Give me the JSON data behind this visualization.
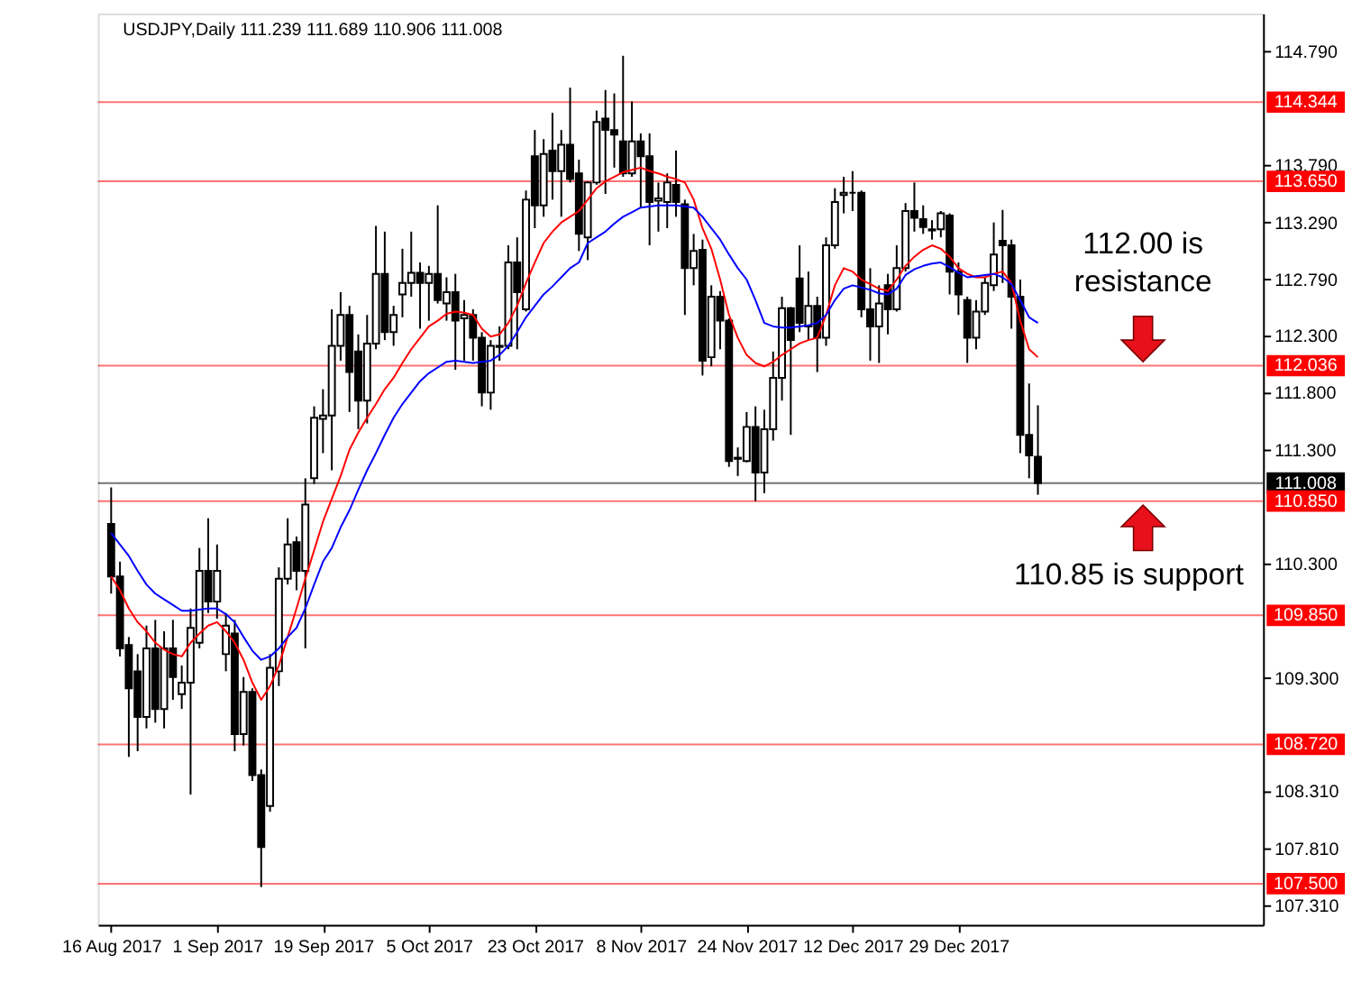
{
  "chart_data": {
    "type": "candlestick",
    "title": "USDJPY,Daily  111.239 111.689 110.906 111.008",
    "categories": [
      "16 Aug 2017",
      null,
      null,
      null,
      null,
      null,
      null,
      null,
      null,
      null,
      null,
      null,
      "1 Sep 2017",
      null,
      null,
      null,
      null,
      null,
      null,
      null,
      null,
      null,
      null,
      null,
      "19 Sep 2017",
      null,
      null,
      null,
      null,
      null,
      null,
      null,
      null,
      null,
      null,
      null,
      "5 Oct 2017",
      null,
      null,
      null,
      null,
      null,
      null,
      null,
      null,
      null,
      null,
      null,
      "23 Oct 2017",
      null,
      null,
      null,
      null,
      null,
      null,
      null,
      null,
      null,
      null,
      null,
      "8 Nov 2017",
      null,
      null,
      null,
      null,
      null,
      null,
      null,
      null,
      null,
      null,
      null,
      "24 Nov 2017",
      null,
      null,
      null,
      null,
      null,
      null,
      null,
      null,
      null,
      null,
      null,
      "12 Dec 2017",
      null,
      null,
      null,
      null,
      null,
      null,
      null,
      null,
      null,
      null,
      null,
      "29 Dec 2017",
      null,
      null,
      null,
      null,
      null,
      null,
      null,
      null,
      null
    ],
    "ohlc": [
      [
        110.65,
        110.97,
        110.04,
        110.19
      ],
      [
        110.19,
        110.32,
        109.49,
        109.56
      ],
      [
        109.59,
        109.66,
        108.61,
        109.21
      ],
      [
        109.36,
        109.51,
        108.66,
        108.96
      ],
      [
        108.96,
        109.76,
        108.86,
        109.56
      ],
      [
        109.56,
        109.81,
        108.91,
        109.03
      ],
      [
        109.03,
        109.71,
        108.86,
        109.56
      ],
      [
        109.56,
        109.81,
        109.11,
        109.31
      ],
      [
        109.16,
        109.41,
        109.03,
        109.26
      ],
      [
        109.26,
        109.91,
        108.28,
        109.74
      ],
      [
        109.61,
        110.44,
        109.56,
        110.24
      ],
      [
        110.24,
        110.7,
        109.87,
        109.97
      ],
      [
        109.97,
        110.47,
        109.82,
        110.24
      ],
      [
        109.51,
        109.87,
        109.36,
        109.76
      ],
      [
        109.69,
        109.81,
        108.66,
        108.81
      ],
      [
        108.81,
        109.31,
        108.71,
        109.18
      ],
      [
        109.18,
        109.21,
        108.4,
        108.45
      ],
      [
        108.45,
        108.5,
        107.47,
        107.82
      ],
      [
        108.18,
        109.51,
        108.13,
        109.39
      ],
      [
        109.36,
        110.27,
        109.23,
        110.17
      ],
      [
        110.17,
        110.7,
        110.12,
        110.47
      ],
      [
        110.49,
        110.54,
        110.07,
        110.24
      ],
      [
        110.24,
        111.05,
        109.56,
        110.82
      ],
      [
        111.05,
        111.68,
        111.0,
        111.58
      ],
      [
        111.57,
        111.83,
        111.27,
        111.6
      ],
      [
        111.6,
        112.53,
        111.12,
        112.21
      ],
      [
        112.21,
        112.68,
        112.08,
        112.48
      ],
      [
        112.48,
        112.56,
        111.63,
        111.98
      ],
      [
        112.16,
        112.31,
        111.48,
        111.73
      ],
      [
        111.73,
        112.48,
        111.53,
        112.23
      ],
      [
        112.23,
        113.26,
        112.18,
        112.84
      ],
      [
        112.84,
        113.21,
        112.26,
        112.33
      ],
      [
        112.33,
        112.56,
        112.21,
        112.48
      ],
      [
        112.66,
        113.06,
        112.46,
        112.76
      ],
      [
        112.76,
        113.21,
        112.64,
        112.85
      ],
      [
        112.85,
        112.94,
        112.36,
        112.76
      ],
      [
        112.76,
        112.91,
        112.43,
        112.84
      ],
      [
        112.84,
        113.44,
        112.58,
        112.61
      ],
      [
        112.58,
        112.81,
        112.43,
        112.68
      ],
      [
        112.68,
        112.84,
        112.0,
        112.43
      ],
      [
        112.45,
        112.61,
        112.08,
        112.48
      ],
      [
        112.48,
        112.53,
        112.08,
        112.28
      ],
      [
        112.28,
        112.33,
        111.68,
        111.8
      ],
      [
        111.8,
        112.26,
        111.65,
        112.21
      ],
      [
        112.2,
        112.38,
        112.08,
        112.21
      ],
      [
        112.21,
        113.09,
        112.18,
        112.94
      ],
      [
        112.94,
        113.16,
        112.18,
        112.68
      ],
      [
        112.53,
        113.57,
        112.51,
        113.49
      ],
      [
        113.87,
        114.1,
        113.24,
        113.44
      ],
      [
        113.44,
        114.02,
        113.34,
        113.89
      ],
      [
        113.92,
        114.25,
        113.49,
        113.74
      ],
      [
        113.74,
        114.1,
        113.34,
        113.97
      ],
      [
        113.97,
        114.47,
        113.64,
        113.67
      ],
      [
        113.72,
        113.84,
        113.04,
        113.19
      ],
      [
        113.16,
        113.65,
        112.96,
        113.64
      ],
      [
        113.64,
        114.27,
        113.62,
        114.17
      ],
      [
        114.2,
        114.45,
        113.54,
        114.1
      ],
      [
        114.1,
        114.42,
        113.77,
        114.06
      ],
      [
        114.0,
        114.75,
        113.69,
        113.72
      ],
      [
        113.72,
        114.35,
        113.69,
        114.0
      ],
      [
        114.0,
        114.07,
        113.42,
        113.87
      ],
      [
        113.87,
        114.07,
        113.09,
        113.47
      ],
      [
        113.48,
        113.64,
        113.21,
        113.5
      ],
      [
        113.47,
        113.72,
        113.24,
        113.64
      ],
      [
        113.62,
        113.92,
        113.34,
        113.47
      ],
      [
        113.45,
        113.49,
        112.48,
        112.89
      ],
      [
        112.89,
        113.19,
        112.74,
        113.04
      ],
      [
        113.05,
        113.14,
        111.95,
        112.08
      ],
      [
        112.11,
        112.74,
        112.03,
        112.64
      ],
      [
        112.64,
        112.69,
        112.18,
        112.43
      ],
      [
        112.43,
        112.45,
        111.15,
        111.2
      ],
      [
        111.22,
        111.32,
        111.07,
        111.23
      ],
      [
        111.2,
        111.63,
        111.19,
        111.5
      ],
      [
        111.5,
        111.68,
        110.85,
        111.1
      ],
      [
        111.1,
        111.65,
        110.92,
        111.48
      ],
      [
        111.48,
        112.16,
        111.38,
        111.93
      ],
      [
        111.93,
        112.64,
        111.73,
        112.54
      ],
      [
        112.54,
        112.55,
        111.43,
        112.26
      ],
      [
        112.8,
        113.09,
        112.33,
        112.41
      ],
      [
        112.38,
        112.86,
        112.26,
        112.56
      ],
      [
        112.56,
        112.64,
        111.98,
        112.28
      ],
      [
        112.28,
        113.16,
        112.21,
        113.09
      ],
      [
        113.09,
        113.59,
        113.06,
        113.47
      ],
      [
        113.53,
        113.69,
        113.37,
        113.55
      ],
      [
        113.55,
        113.74,
        113.39,
        113.55
      ],
      [
        113.55,
        113.57,
        112.46,
        112.53
      ],
      [
        112.53,
        112.89,
        112.08,
        112.38
      ],
      [
        112.38,
        112.74,
        112.06,
        112.58
      ],
      [
        112.74,
        112.84,
        112.31,
        112.53
      ],
      [
        112.53,
        113.09,
        112.51,
        112.89
      ],
      [
        112.89,
        113.46,
        112.86,
        113.39
      ],
      [
        113.39,
        113.64,
        113.21,
        113.33
      ],
      [
        113.32,
        113.44,
        113.19,
        113.25
      ],
      [
        113.22,
        113.31,
        113.14,
        113.23
      ],
      [
        113.23,
        113.39,
        113.16,
        113.37
      ],
      [
        113.35,
        113.37,
        112.66,
        112.86
      ],
      [
        112.86,
        112.94,
        112.48,
        112.66
      ],
      [
        112.61,
        112.64,
        112.06,
        112.28
      ],
      [
        112.28,
        112.61,
        112.18,
        112.51
      ],
      [
        112.51,
        112.81,
        112.48,
        112.76
      ],
      [
        112.74,
        113.29,
        112.69,
        113.01
      ],
      [
        113.13,
        113.4,
        112.76,
        113.09
      ],
      [
        113.09,
        113.14,
        112.36,
        112.64
      ],
      [
        112.64,
        112.79,
        111.27,
        111.43
      ],
      [
        111.43,
        111.88,
        111.05,
        111.25
      ],
      [
        111.239,
        111.689,
        110.906,
        111.008
      ]
    ],
    "series": [
      {
        "type": "line",
        "color": "#ff0000",
        "values": [
          110.19,
          110.07,
          109.91,
          109.79,
          109.71,
          109.61,
          109.55,
          109.51,
          109.49,
          109.61,
          109.69,
          109.76,
          109.79,
          109.71,
          109.61,
          109.46,
          109.26,
          109.11,
          109.23,
          109.41,
          109.66,
          109.91,
          110.17,
          110.42,
          110.67,
          110.87,
          111.07,
          111.3,
          111.45,
          111.58,
          111.7,
          111.83,
          111.93,
          112.06,
          112.18,
          112.28,
          112.38,
          112.43,
          112.49,
          112.51,
          112.5,
          112.48,
          112.36,
          112.29,
          112.31,
          112.41,
          112.56,
          112.76,
          112.94,
          113.11,
          113.21,
          113.29,
          113.34,
          113.39,
          113.49,
          113.59,
          113.65,
          113.69,
          113.73,
          113.75,
          113.77,
          113.74,
          113.72,
          113.69,
          113.67,
          113.64,
          113.49,
          113.24,
          113.06,
          112.79,
          112.48,
          112.28,
          112.13,
          112.06,
          112.03,
          112.07,
          112.13,
          112.18,
          112.23,
          112.26,
          112.28,
          112.48,
          112.74,
          112.89,
          112.86,
          112.79,
          112.75,
          112.71,
          112.69,
          112.79,
          112.91,
          112.99,
          113.05,
          113.09,
          113.06,
          112.99,
          112.89,
          112.84,
          112.81,
          112.81,
          112.84,
          112.86,
          112.76,
          112.43,
          112.18,
          112.11
        ]
      },
      {
        "type": "line",
        "color": "#0000ff",
        "values": [
          110.57,
          110.47,
          110.37,
          110.24,
          110.12,
          110.04,
          109.99,
          109.94,
          109.89,
          109.89,
          109.9,
          109.91,
          109.91,
          109.86,
          109.79,
          109.66,
          109.54,
          109.46,
          109.49,
          109.56,
          109.66,
          109.74,
          109.91,
          110.12,
          110.32,
          110.44,
          110.62,
          110.77,
          110.95,
          111.12,
          111.27,
          111.43,
          111.58,
          111.7,
          111.8,
          111.9,
          111.97,
          112.02,
          112.07,
          112.08,
          112.07,
          112.06,
          112.07,
          112.08,
          112.13,
          112.21,
          112.33,
          112.46,
          112.56,
          112.66,
          112.73,
          112.81,
          112.89,
          112.94,
          113.11,
          113.16,
          113.21,
          113.28,
          113.34,
          113.38,
          113.42,
          113.43,
          113.44,
          113.44,
          113.44,
          113.43,
          113.42,
          113.34,
          113.24,
          113.14,
          113.01,
          112.89,
          112.79,
          112.61,
          112.41,
          112.38,
          112.37,
          112.37,
          112.38,
          112.39,
          112.41,
          112.48,
          112.61,
          112.71,
          112.74,
          112.72,
          112.7,
          112.67,
          112.66,
          112.71,
          112.83,
          112.88,
          112.91,
          112.93,
          112.94,
          112.9,
          112.85,
          112.81,
          112.82,
          112.83,
          112.84,
          112.81,
          112.75,
          112.61,
          112.46,
          112.41
        ]
      }
    ],
    "ylim": [
      107.14,
      115.12
    ],
    "yticks": [
      {
        "value": 114.79,
        "label": "114.790"
      },
      {
        "value": 113.79,
        "label": "113.790"
      },
      {
        "value": 113.29,
        "label": "113.290"
      },
      {
        "value": 112.79,
        "label": "112.790"
      },
      {
        "value": 112.3,
        "label": "112.300"
      },
      {
        "value": 111.8,
        "label": "111.800"
      },
      {
        "value": 111.3,
        "label": "111.300"
      },
      {
        "value": 110.3,
        "label": "110.300"
      },
      {
        "value": 109.3,
        "label": "109.300"
      },
      {
        "value": 108.31,
        "label": "108.310"
      },
      {
        "value": 107.81,
        "label": "107.810"
      },
      {
        "value": 107.31,
        "label": "107.310"
      }
    ],
    "ref_lines": [
      {
        "axis": "y",
        "value": 114.344,
        "label": "114.344",
        "color": "#ff0000"
      },
      {
        "axis": "y",
        "value": 113.65,
        "label": "113.650",
        "color": "#ff0000"
      },
      {
        "axis": "y",
        "value": 112.036,
        "label": "112.036",
        "color": "#ff0000"
      },
      {
        "axis": "y",
        "value": 111.008,
        "label": "111.008",
        "color": "#000000"
      },
      {
        "axis": "y",
        "value": 110.85,
        "label": "110.850",
        "color": "#ff0000"
      },
      {
        "axis": "y",
        "value": 109.85,
        "label": "109.850",
        "color": "#ff0000"
      },
      {
        "axis": "y",
        "value": 108.72,
        "label": "108.720",
        "color": "#ff0000"
      },
      {
        "axis": "y",
        "value": 107.5,
        "label": "107.500",
        "color": "#ff0000"
      }
    ],
    "annotations": [
      {
        "text": "112.00 is resistance",
        "y": 112.036
      },
      {
        "text": "110.85 is support",
        "y": 110.85
      }
    ],
    "grid": false
  }
}
